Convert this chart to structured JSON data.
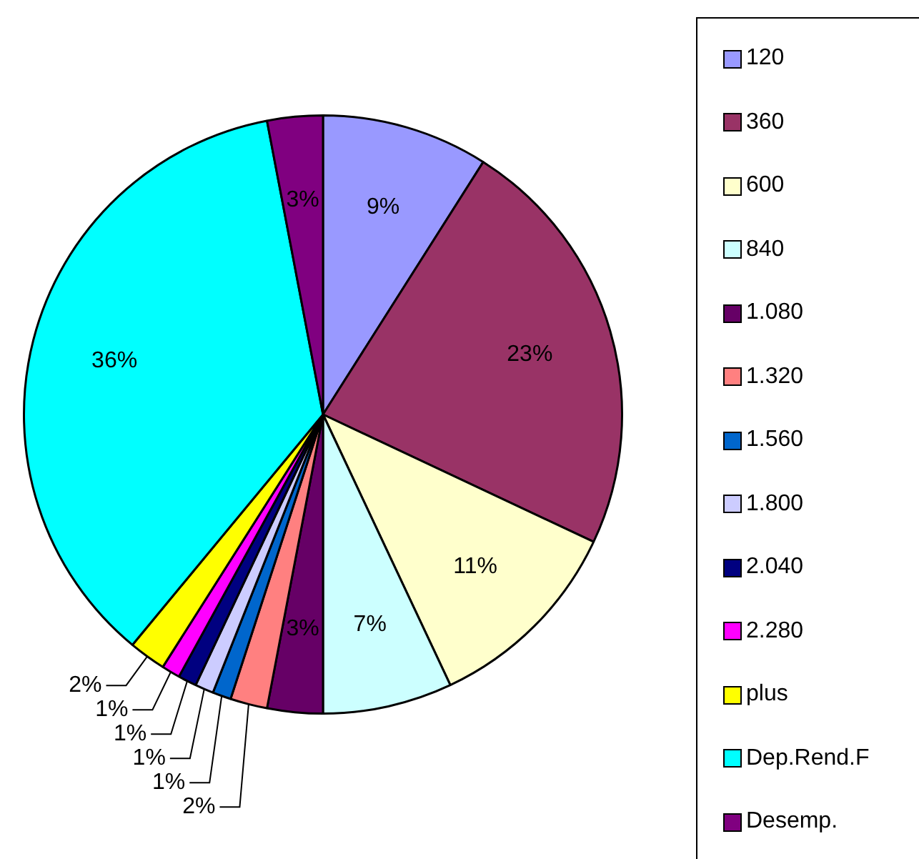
{
  "chart_data": {
    "type": "pie",
    "legend": "right",
    "categories": [
      "120",
      "360",
      "600",
      "840",
      "1.080",
      "1.320",
      "1.560",
      "1.800",
      "2.040",
      "2.280",
      "plus",
      "Dep.Rend.F",
      "Desemp."
    ],
    "values": [
      9,
      23,
      11,
      7,
      3,
      2,
      1,
      1,
      1,
      1,
      2,
      36,
      3
    ],
    "value_labels": [
      "9%",
      "23%",
      "11%",
      "7%",
      "3%",
      "2%",
      "1%",
      "1%",
      "1%",
      "1%",
      "2%",
      "36%",
      "3%"
    ],
    "colors": [
      "#9999ff",
      "#993366",
      "#ffffcc",
      "#ccffff",
      "#660066",
      "#ff8080",
      "#0066cc",
      "#ccccff",
      "#000080",
      "#ff00ff",
      "#ffff00",
      "#00ffff",
      "#800080"
    ]
  }
}
